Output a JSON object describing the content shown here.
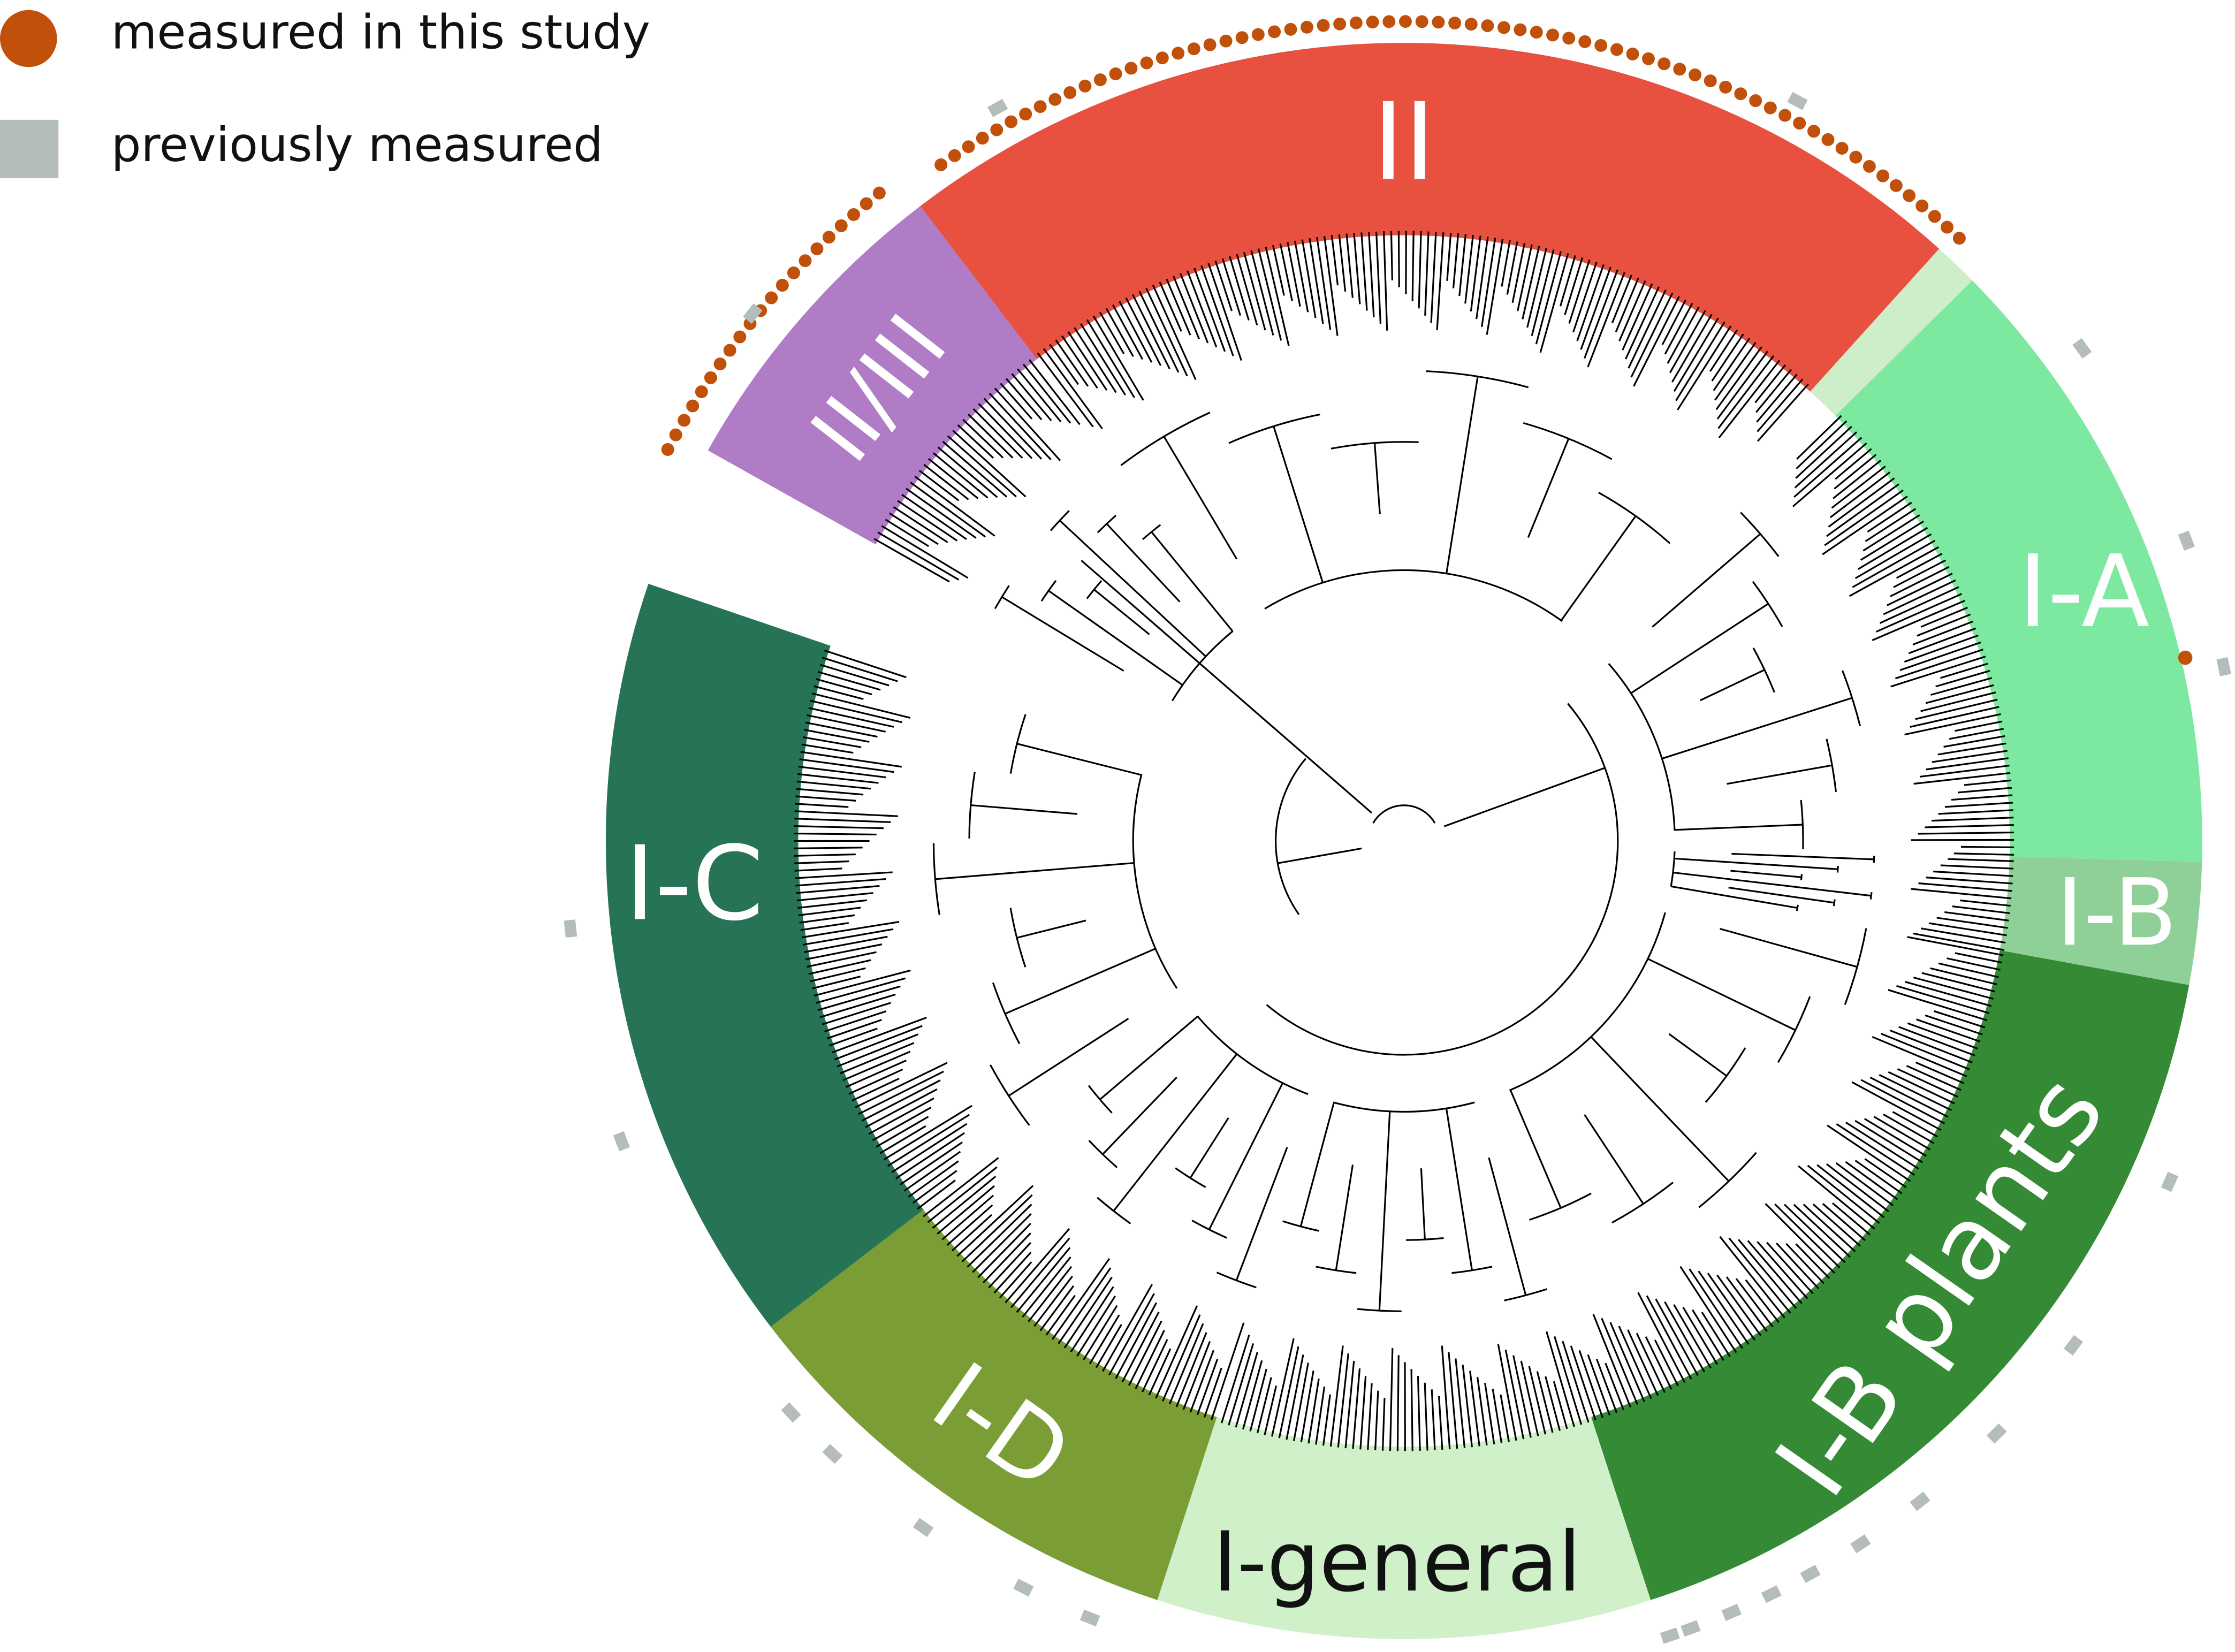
{
  "legend": [
    {
      "label": "measured in this study"
    },
    {
      "label": "previously measured"
    }
  ],
  "clades": [
    {
      "label": "II/III"
    },
    {
      "label": "II"
    },
    {
      "label": "I-A"
    },
    {
      "label": "I-B"
    },
    {
      "label": "I-B plants"
    },
    {
      "label": "I-general"
    },
    {
      "label": "I-D"
    },
    {
      "label": "I-C"
    }
  ]
}
